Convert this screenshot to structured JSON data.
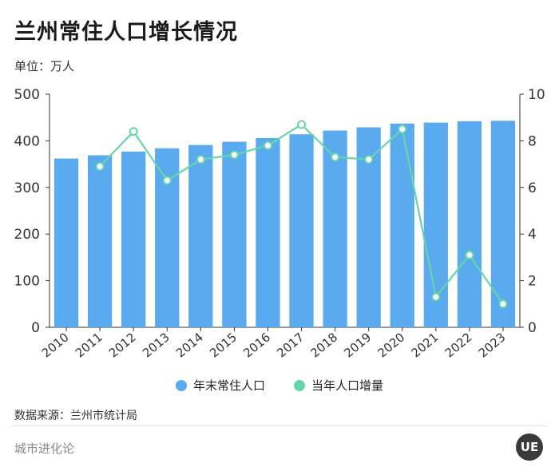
{
  "title": "兰州常住人口增长情况",
  "unit": "单位：万人",
  "source": "数据来源：兰州市统计局",
  "brand": "城市进化论",
  "logo_text": "UE",
  "colors": {
    "bar": "#5aaaf0",
    "line": "#66d6a8",
    "axis": "#333333",
    "grid": "#e0e0e0"
  },
  "chart_data": {
    "type": "bar",
    "categories": [
      "2010",
      "2011",
      "2012",
      "2013",
      "2014",
      "2015",
      "2016",
      "2017",
      "2018",
      "2019",
      "2020",
      "2021",
      "2022",
      "2023"
    ],
    "series": [
      {
        "name": "年末常住人口",
        "type": "bar",
        "axis": "left",
        "values": [
          362,
          369,
          377,
          384,
          391,
          398,
          406,
          414,
          422,
          429,
          437,
          439,
          442,
          443
        ]
      },
      {
        "name": "当年人口增量",
        "type": "line",
        "axis": "right",
        "values": [
          null,
          6.9,
          8.4,
          6.3,
          7.2,
          7.4,
          7.8,
          8.7,
          7.3,
          7.2,
          8.5,
          1.3,
          3.1,
          1.0
        ]
      }
    ],
    "ylim_left": [
      0,
      500
    ],
    "yticks_left": [
      0,
      100,
      200,
      300,
      400,
      500
    ],
    "ylim_right": [
      0,
      10
    ],
    "yticks_right": [
      0,
      2,
      4,
      6,
      8,
      10
    ],
    "grid": false,
    "legend": "bottom"
  }
}
